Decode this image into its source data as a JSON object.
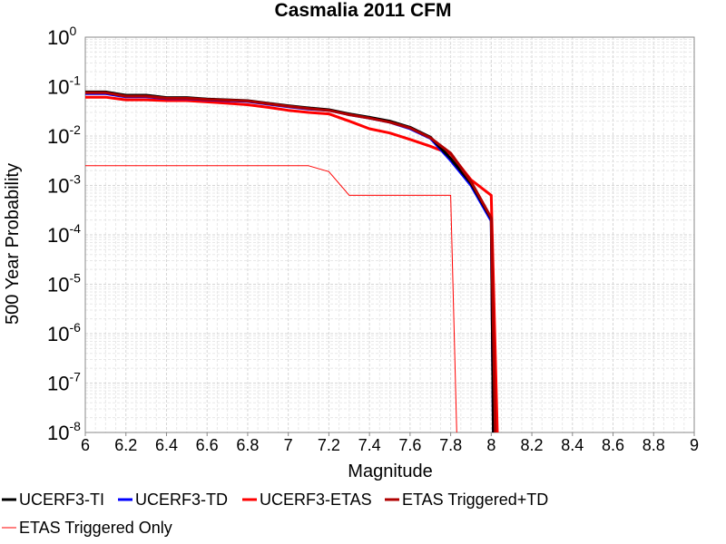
{
  "chart_data": {
    "type": "line",
    "title": "Casmalia 2011 CFM",
    "xlabel": "Magnitude",
    "ylabel": "500 Year Probability",
    "xlim": [
      6,
      9
    ],
    "ylim": [
      1e-08,
      1
    ],
    "yscale": "log",
    "grid": true,
    "legend_position": "bottom",
    "x_ticks": [
      "6",
      "6.2",
      "6.4",
      "6.6",
      "6.8",
      "7",
      "7.2",
      "7.4",
      "7.6",
      "7.8",
      "8",
      "8.2",
      "8.4",
      "8.6",
      "8.8",
      "9"
    ],
    "y_ticks": [
      {
        "base": "10",
        "exp": "0"
      },
      {
        "base": "10",
        "exp": "-1"
      },
      {
        "base": "10",
        "exp": "-2"
      },
      {
        "base": "10",
        "exp": "-3"
      },
      {
        "base": "10",
        "exp": "-4"
      },
      {
        "base": "10",
        "exp": "-5"
      },
      {
        "base": "10",
        "exp": "-6"
      },
      {
        "base": "10",
        "exp": "-7"
      },
      {
        "base": "10",
        "exp": "-8"
      }
    ],
    "series": [
      {
        "name": "UCERF3-TI",
        "color": "#000000",
        "width": 3,
        "points": [
          [
            6.0,
            0.078
          ],
          [
            6.1,
            0.078
          ],
          [
            6.2,
            0.067
          ],
          [
            6.3,
            0.067
          ],
          [
            6.4,
            0.06
          ],
          [
            6.5,
            0.06
          ],
          [
            6.6,
            0.056
          ],
          [
            6.7,
            0.054
          ],
          [
            6.8,
            0.052
          ],
          [
            6.9,
            0.046
          ],
          [
            7.0,
            0.041
          ],
          [
            7.1,
            0.037
          ],
          [
            7.2,
            0.034
          ],
          [
            7.3,
            0.028
          ],
          [
            7.4,
            0.024
          ],
          [
            7.5,
            0.02
          ],
          [
            7.6,
            0.015
          ],
          [
            7.7,
            0.0095
          ],
          [
            7.8,
            0.0035
          ],
          [
            7.9,
            0.0011
          ],
          [
            8.0,
            0.00021
          ],
          [
            8.01,
            1e-08
          ]
        ]
      },
      {
        "name": "UCERF3-TD",
        "color": "#0000ff",
        "width": 3,
        "points": [
          [
            6.0,
            0.072
          ],
          [
            6.1,
            0.072
          ],
          [
            6.2,
            0.062
          ],
          [
            6.3,
            0.062
          ],
          [
            6.4,
            0.057
          ],
          [
            6.5,
            0.057
          ],
          [
            6.6,
            0.054
          ],
          [
            6.7,
            0.052
          ],
          [
            6.8,
            0.05
          ],
          [
            6.9,
            0.044
          ],
          [
            7.0,
            0.039
          ],
          [
            7.1,
            0.035
          ],
          [
            7.2,
            0.033
          ],
          [
            7.3,
            0.027
          ],
          [
            7.4,
            0.023
          ],
          [
            7.5,
            0.019
          ],
          [
            7.6,
            0.014
          ],
          [
            7.7,
            0.009
          ],
          [
            7.8,
            0.0032
          ],
          [
            7.9,
            0.001
          ],
          [
            8.0,
            0.00019
          ],
          [
            8.01,
            1e-08
          ]
        ]
      },
      {
        "name": "UCERF3-ETAS",
        "color": "#ff0000",
        "width": 3,
        "points": [
          [
            6.0,
            0.061
          ],
          [
            6.1,
            0.061
          ],
          [
            6.2,
            0.054
          ],
          [
            6.3,
            0.054
          ],
          [
            6.4,
            0.052
          ],
          [
            6.5,
            0.052
          ],
          [
            6.6,
            0.049
          ],
          [
            6.7,
            0.046
          ],
          [
            6.8,
            0.043
          ],
          [
            6.9,
            0.038
          ],
          [
            7.0,
            0.033
          ],
          [
            7.1,
            0.03
          ],
          [
            7.2,
            0.028
          ],
          [
            7.3,
            0.02
          ],
          [
            7.4,
            0.014
          ],
          [
            7.5,
            0.0115
          ],
          [
            7.6,
            0.0085
          ],
          [
            7.7,
            0.0062
          ],
          [
            7.8,
            0.0043
          ],
          [
            7.9,
            0.0013
          ],
          [
            8.0,
            0.00063
          ],
          [
            8.03,
            1e-08
          ]
        ]
      },
      {
        "name": "ETAS Triggered+TD",
        "color": "#b00000",
        "width": 3,
        "points": [
          [
            6.0,
            0.075
          ],
          [
            6.1,
            0.075
          ],
          [
            6.2,
            0.064
          ],
          [
            6.3,
            0.064
          ],
          [
            6.4,
            0.058
          ],
          [
            6.5,
            0.058
          ],
          [
            6.6,
            0.055
          ],
          [
            6.7,
            0.053
          ],
          [
            6.8,
            0.051
          ],
          [
            6.9,
            0.045
          ],
          [
            7.0,
            0.04
          ],
          [
            7.1,
            0.036
          ],
          [
            7.2,
            0.033
          ],
          [
            7.3,
            0.027
          ],
          [
            7.4,
            0.023
          ],
          [
            7.5,
            0.019
          ],
          [
            7.6,
            0.0145
          ],
          [
            7.7,
            0.0092
          ],
          [
            7.8,
            0.0045
          ],
          [
            7.9,
            0.0012
          ],
          [
            8.0,
            0.00022
          ],
          [
            8.02,
            1e-08
          ]
        ]
      },
      {
        "name": "ETAS Triggered Only",
        "color": "#ff0000",
        "width": 1,
        "points": [
          [
            6.0,
            0.0025
          ],
          [
            7.1,
            0.0025
          ],
          [
            7.2,
            0.0019
          ],
          [
            7.3,
            0.00063
          ],
          [
            7.8,
            0.00063
          ],
          [
            7.83,
            1e-08
          ]
        ]
      }
    ]
  }
}
